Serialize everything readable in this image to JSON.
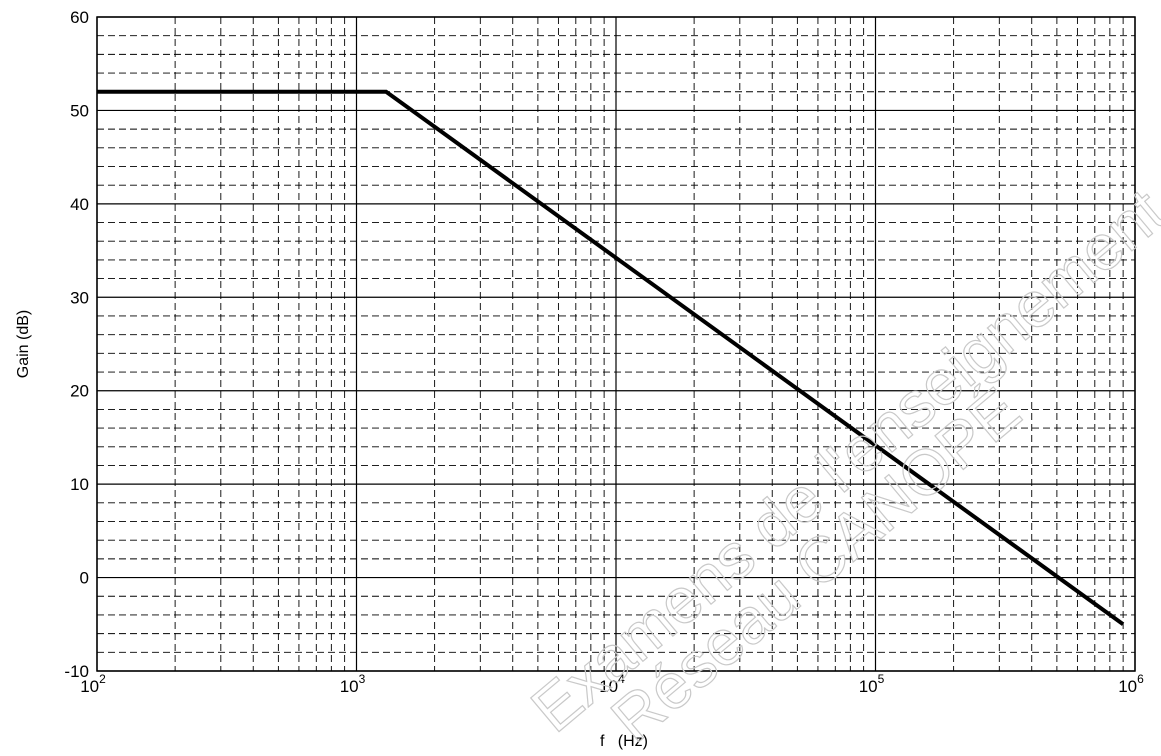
{
  "chart_data": {
    "type": "line",
    "title": "",
    "xlabel": "f   (Hz)",
    "ylabel": "Gain (dB)",
    "x_scale": "log",
    "xlim": [
      100,
      1000000
    ],
    "ylim": [
      -10,
      60
    ],
    "x_ticks": [
      {
        "base": "10",
        "exp": "2"
      },
      {
        "base": "10",
        "exp": "3"
      },
      {
        "base": "10",
        "exp": "4"
      },
      {
        "base": "10",
        "exp": "5"
      },
      {
        "base": "10",
        "exp": "6"
      }
    ],
    "y_ticks": [
      "60",
      "50",
      "40",
      "30",
      "20",
      "10",
      "0",
      "-10"
    ],
    "grid": true,
    "series": [
      {
        "color": "#000000",
        "x": [
          100,
          1300,
          900000
        ],
        "y": [
          52,
          52,
          -5
        ]
      }
    ]
  },
  "watermark": {
    "line1": "Examens de l'enseignement professionnel",
    "line2": "Réseau CANOPÉ"
  }
}
